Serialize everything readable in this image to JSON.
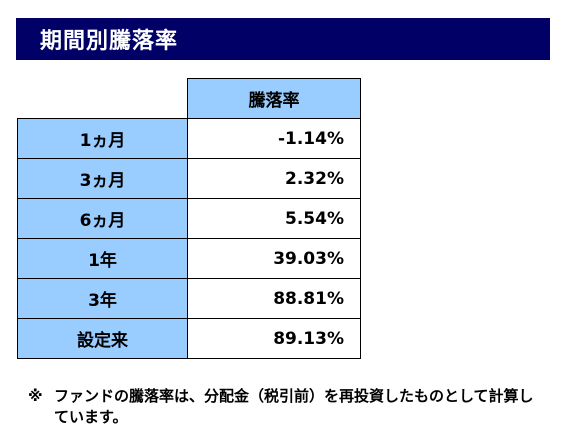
{
  "title": "期間別騰落率",
  "table": {
    "header": "騰落率",
    "rows": [
      {
        "period": "1ヵ月",
        "value": "-1.14%"
      },
      {
        "period": "3ヵ月",
        "value": "2.32%"
      },
      {
        "period": "6ヵ月",
        "value": "5.54%"
      },
      {
        "period": "1年",
        "value": "39.03%"
      },
      {
        "period": "3年",
        "value": "88.81%"
      },
      {
        "period": "設定来",
        "value": "89.13%"
      }
    ]
  },
  "note": {
    "mark": "※",
    "text": "ファンドの騰落率は、分配金（税引前）を再投資したものとして計算しています。"
  },
  "colors": {
    "title_background": "#000066",
    "cell_highlight": "#99ccff"
  }
}
